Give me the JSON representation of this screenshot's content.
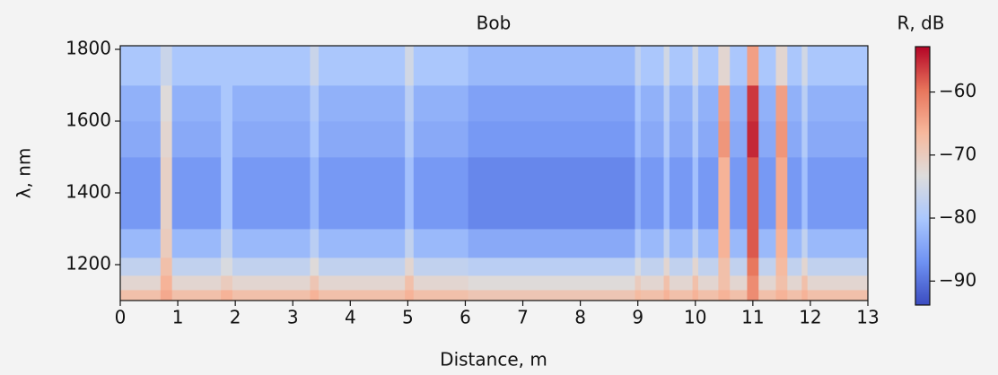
{
  "chart_data": {
    "type": "heatmap",
    "title": "Bob",
    "x_label": "Distance, m",
    "y_label": "λ, nm",
    "colorbar_label": "R, dB",
    "x": [
      0,
      0.7,
      0.9,
      1.75,
      1.95,
      3.3,
      3.45,
      4.95,
      5.1,
      6.05,
      8.95,
      9.05,
      9.45,
      9.55,
      9.95,
      10.05,
      10.4,
      10.6,
      10.9,
      11.1,
      11.4,
      11.6,
      11.85,
      11.95,
      13
    ],
    "y": [
      1100,
      1130,
      1170,
      1220,
      1300,
      1500,
      1600,
      1700,
      1810
    ],
    "values": [
      [
        -68,
        -65,
        -68,
        -66,
        -68,
        -66,
        -68,
        -66,
        -68,
        -69,
        -67,
        -68,
        -66,
        -68,
        -66,
        -68,
        -66,
        -68,
        -62,
        -68,
        -66,
        -68,
        -66,
        -68
      ],
      [
        -72,
        -66,
        -72,
        -70,
        -72,
        -69,
        -72,
        -68,
        -72,
        -73,
        -70,
        -72,
        -68,
        -72,
        -68,
        -72,
        -68,
        -72,
        -62,
        -72,
        -68,
        -72,
        -68,
        -72
      ],
      [
        -77,
        -68,
        -77,
        -74,
        -77,
        -73,
        -77,
        -72,
        -77,
        -78,
        -74,
        -77,
        -72,
        -77,
        -72,
        -77,
        -68,
        -77,
        -60,
        -77,
        -67,
        -77,
        -72,
        -77
      ],
      [
        -82,
        -70,
        -82,
        -77,
        -82,
        -78,
        -82,
        -77,
        -82,
        -84,
        -79,
        -82,
        -77,
        -82,
        -77,
        -82,
        -66,
        -82,
        -58,
        -82,
        -66,
        -82,
        -77,
        -82
      ],
      [
        -86,
        -71,
        -86,
        -80,
        -86,
        -82,
        -86,
        -81,
        -86,
        -88,
        -83,
        -86,
        -81,
        -86,
        -81,
        -86,
        -66,
        -86,
        -58,
        -86,
        -65,
        -86,
        -81,
        -86
      ],
      [
        -84,
        -72,
        -84,
        -80,
        -84,
        -80,
        -84,
        -79,
        -84,
        -86,
        -81,
        -84,
        -79,
        -84,
        -79,
        -84,
        -63,
        -84,
        -55,
        -84,
        -63,
        -84,
        -79,
        -84
      ],
      [
        -83,
        -73,
        -83,
        -80,
        -83,
        -79,
        -83,
        -78,
        -83,
        -85,
        -80,
        -83,
        -78,
        -83,
        -78,
        -83,
        -64,
        -83,
        -56,
        -83,
        -64,
        -83,
        -78,
        -83
      ],
      [
        -80,
        -76,
        -80,
        -80,
        -80,
        -76,
        -80,
        -75,
        -80,
        -82,
        -77,
        -80,
        -75,
        -80,
        -75,
        -80,
        -72,
        -80,
        -64,
        -80,
        -72,
        -80,
        -75,
        -80
      ]
    ],
    "xlim": [
      0,
      13
    ],
    "xticks": [
      0,
      1,
      2,
      3,
      4,
      5,
      6,
      7,
      8,
      9,
      10,
      11,
      12,
      13
    ],
    "ylim": [
      1100,
      1810
    ],
    "yticks": [
      1200,
      1400,
      1600,
      1800
    ],
    "clim": [
      -93.8,
      -52.8
    ],
    "cticks": [
      {
        "value": -90,
        "label": "−90"
      },
      {
        "value": -80,
        "label": "−80"
      },
      {
        "value": -70,
        "label": "−70"
      },
      {
        "value": -60,
        "label": "−60"
      }
    ],
    "colormap": [
      "#3b4cc0",
      "#6f92f3",
      "#aac7fd",
      "#dddcdc",
      "#f7b89c",
      "#e7745b",
      "#b40426"
    ]
  }
}
